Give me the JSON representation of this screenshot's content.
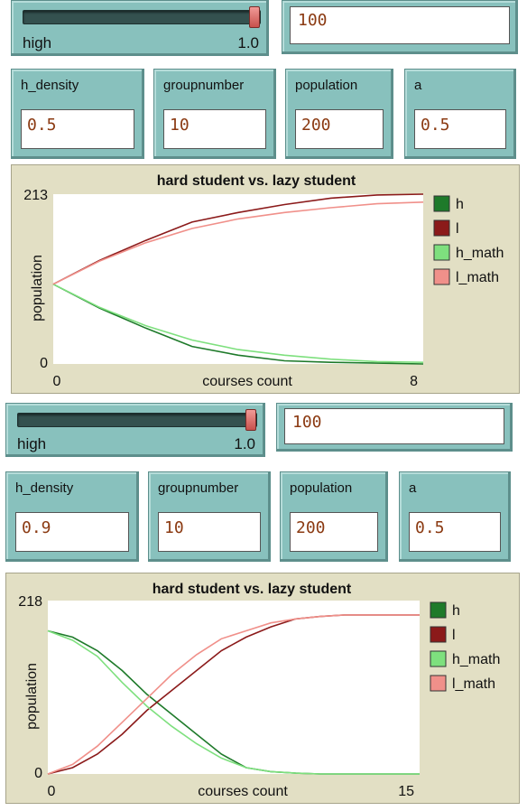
{
  "panels": [
    {
      "slider": {
        "label": "high",
        "value": "1.0",
        "level": 1.0
      },
      "topfield": "100",
      "inputs": [
        {
          "label": "h_density",
          "value": "0.5"
        },
        {
          "label": "groupnumber",
          "value": "10"
        },
        {
          "label": "population",
          "value": "200"
        },
        {
          "label": "a",
          "value": "0.5"
        }
      ]
    },
    {
      "slider": {
        "label": "high",
        "value": "1.0",
        "level": 1.0
      },
      "topfield": "100",
      "inputs": [
        {
          "label": "h_density",
          "value": "0.9"
        },
        {
          "label": "groupnumber",
          "value": "10"
        },
        {
          "label": "population",
          "value": "200"
        },
        {
          "label": "a",
          "value": "0.5"
        }
      ]
    }
  ],
  "colors": {
    "h": "#1e7a2a",
    "l": "#8b1a1a",
    "h_math": "#7ee07e",
    "l_math": "#f0908a"
  },
  "chart_data": [
    {
      "type": "line",
      "title": "hard student vs. lazy student",
      "xlabel": "courses count",
      "ylabel": "population",
      "xlim": [
        0,
        8
      ],
      "ylim": [
        0,
        213
      ],
      "xticks": [
        "0",
        "8"
      ],
      "yticks": [
        "0",
        "213"
      ],
      "legend": "right",
      "series": [
        {
          "name": "h",
          "x": [
            0,
            1,
            2,
            3,
            4,
            5,
            6,
            7,
            8
          ],
          "values": [
            100,
            70,
            45,
            22,
            11,
            4,
            2,
            1,
            0
          ]
        },
        {
          "name": "l",
          "x": [
            0,
            1,
            2,
            3,
            4,
            5,
            6,
            7,
            8
          ],
          "values": [
            100,
            130,
            155,
            178,
            190,
            200,
            208,
            212,
            213
          ]
        },
        {
          "name": "h_math",
          "x": [
            0,
            1,
            2,
            3,
            4,
            5,
            6,
            7,
            8
          ],
          "values": [
            100,
            71,
            48,
            30,
            18,
            11,
            6,
            3,
            2
          ]
        },
        {
          "name": "l_math",
          "x": [
            0,
            1,
            2,
            3,
            4,
            5,
            6,
            7,
            8
          ],
          "values": [
            100,
            129,
            152,
            170,
            182,
            190,
            196,
            201,
            203
          ]
        }
      ]
    },
    {
      "type": "line",
      "title": "hard student vs. lazy student",
      "xlabel": "courses count",
      "ylabel": "population",
      "xlim": [
        0,
        15
      ],
      "ylim": [
        0,
        218
      ],
      "xticks": [
        "0",
        "15"
      ],
      "yticks": [
        "0",
        "218"
      ],
      "legend": "right",
      "series": [
        {
          "name": "h",
          "x": [
            0,
            1,
            2,
            3,
            4,
            5,
            6,
            7,
            8,
            9,
            10,
            11,
            12,
            13,
            14,
            15
          ],
          "values": [
            180,
            172,
            155,
            130,
            100,
            75,
            50,
            25,
            8,
            3,
            1,
            0,
            0,
            0,
            0,
            0
          ]
        },
        {
          "name": "l",
          "x": [
            0,
            1,
            2,
            3,
            4,
            5,
            6,
            7,
            8,
            9,
            10,
            11,
            12,
            13,
            14,
            15
          ],
          "values": [
            0,
            8,
            25,
            50,
            80,
            105,
            130,
            155,
            172,
            185,
            195,
            198,
            200,
            200,
            200,
            200
          ]
        },
        {
          "name": "h_math",
          "x": [
            0,
            1,
            2,
            3,
            4,
            5,
            6,
            7,
            8,
            9,
            10,
            11,
            12,
            13,
            14,
            15
          ],
          "values": [
            180,
            168,
            148,
            115,
            85,
            60,
            38,
            20,
            8,
            3,
            1,
            0,
            0,
            0,
            0,
            0
          ]
        },
        {
          "name": "l_math",
          "x": [
            0,
            1,
            2,
            3,
            4,
            5,
            6,
            7,
            8,
            9,
            10,
            11,
            12,
            13,
            14,
            15
          ],
          "values": [
            0,
            12,
            35,
            65,
            95,
            125,
            150,
            170,
            180,
            190,
            195,
            198,
            200,
            200,
            200,
            200
          ]
        }
      ]
    }
  ]
}
